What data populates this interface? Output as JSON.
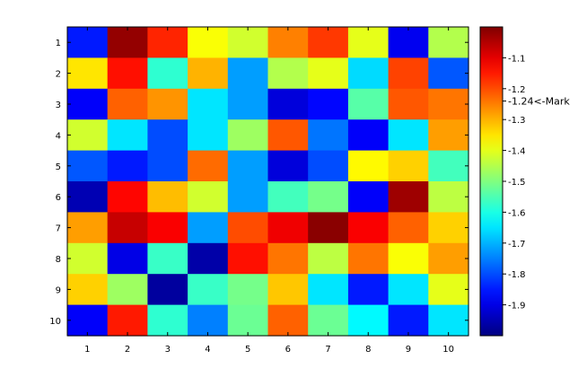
{
  "chart_data": {
    "type": "heatmap",
    "x_ticks": [
      "1",
      "2",
      "3",
      "4",
      "5",
      "6",
      "7",
      "8",
      "9",
      "10"
    ],
    "y_ticks": [
      "1",
      "2",
      "3",
      "4",
      "5",
      "6",
      "7",
      "8",
      "9",
      "10"
    ],
    "values": [
      [
        -1.85,
        -1.02,
        -1.16,
        -1.38,
        -1.42,
        -1.25,
        -1.18,
        -1.4,
        -1.89,
        -1.45
      ],
      [
        -1.35,
        -1.14,
        -1.58,
        -1.3,
        -1.72,
        -1.45,
        -1.4,
        -1.66,
        -1.19,
        -1.79
      ],
      [
        -1.88,
        -1.22,
        -1.27,
        -1.65,
        -1.72,
        -1.91,
        -1.87,
        -1.54,
        -1.21,
        -1.24
      ],
      [
        -1.42,
        -1.65,
        -1.8,
        -1.65,
        -1.47,
        -1.21,
        -1.76,
        -1.88,
        -1.65,
        -1.28
      ],
      [
        -1.79,
        -1.85,
        -1.8,
        -1.23,
        -1.72,
        -1.91,
        -1.8,
        -1.37,
        -1.33,
        -1.56
      ],
      [
        -1.95,
        -1.13,
        -1.31,
        -1.42,
        -1.72,
        -1.56,
        -1.51,
        -1.88,
        -1.03,
        -1.44
      ],
      [
        -1.28,
        -1.07,
        -1.12,
        -1.72,
        -1.2,
        -1.11,
        -1.01,
        -1.12,
        -1.22,
        -1.33
      ],
      [
        -1.42,
        -1.9,
        -1.57,
        -1.96,
        -1.14,
        -1.24,
        -1.44,
        -1.24,
        -1.38,
        -1.28
      ],
      [
        -1.33,
        -1.47,
        -1.97,
        -1.57,
        -1.51,
        -1.32,
        -1.65,
        -1.85,
        -1.65,
        -1.4
      ],
      [
        -1.88,
        -1.15,
        -1.58,
        -1.75,
        -1.52,
        -1.22,
        -1.52,
        -1.63,
        -1.85,
        -1.65
      ]
    ],
    "colormap": "jet",
    "color_range": [
      -2.0,
      -1.0
    ],
    "colorbar": {
      "ticks": [
        -1.9,
        -1.8,
        -1.7,
        -1.6,
        -1.5,
        -1.4,
        -1.3,
        -1.2,
        -1.1
      ],
      "tick_labels": [
        "-1.9",
        "-1.8",
        "-1.7",
        "-1.6",
        "-1.5",
        "-1.4",
        "-1.3",
        "-1.2",
        "-1.1"
      ],
      "mark_value": -1.24,
      "mark_label": "-1.24<-Mark"
    },
    "title": "",
    "xlabel": "",
    "ylabel": "",
    "grid": false
  }
}
